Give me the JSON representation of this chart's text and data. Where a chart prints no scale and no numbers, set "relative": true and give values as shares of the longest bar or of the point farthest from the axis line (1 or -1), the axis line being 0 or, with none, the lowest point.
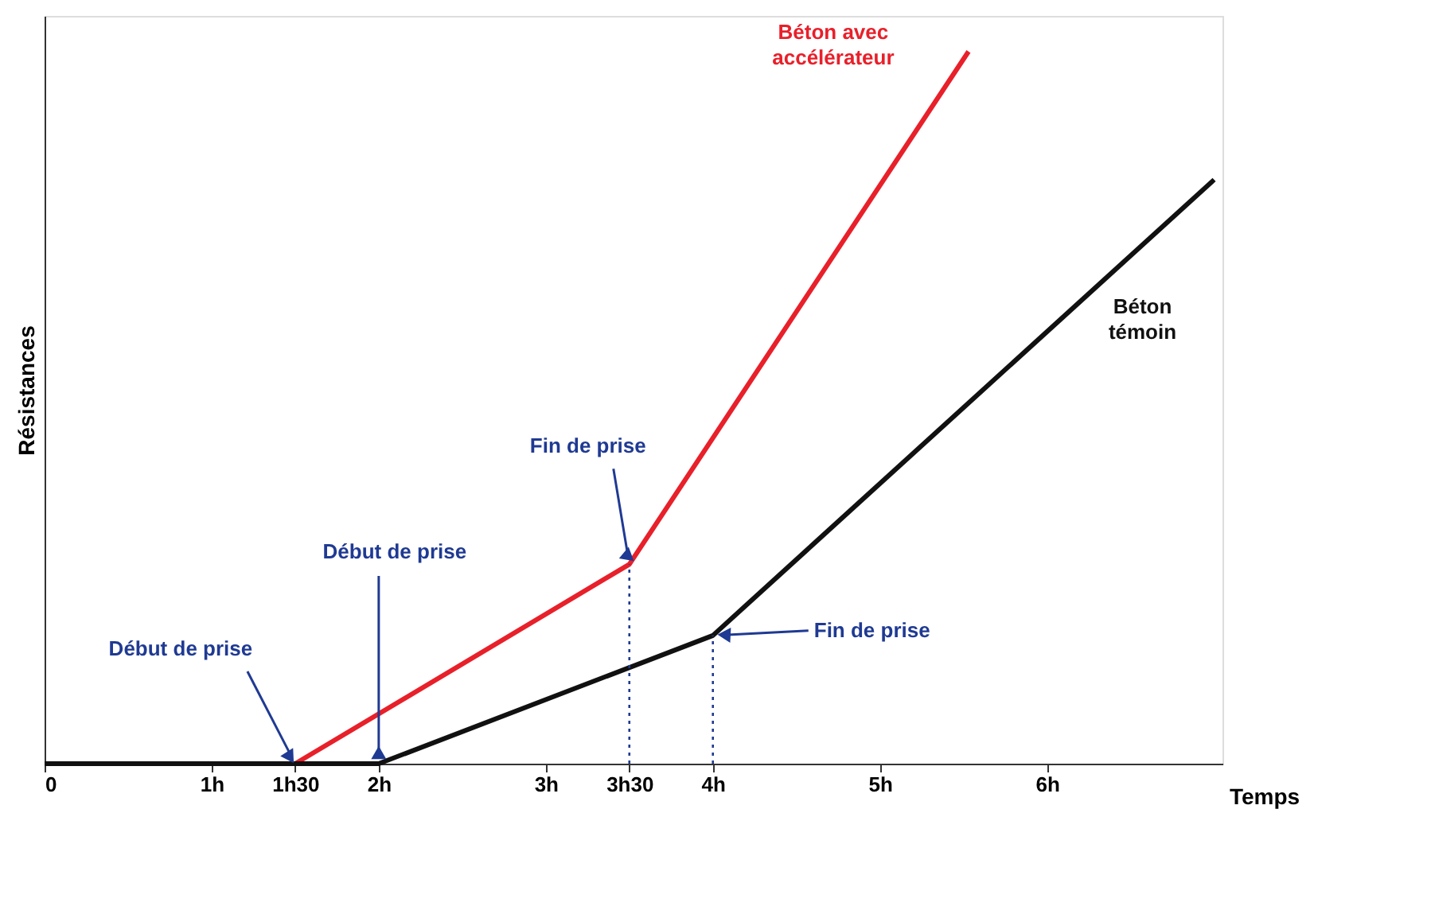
{
  "chart_data": {
    "type": "line",
    "xlabel": "Temps",
    "ylabel": "Résistances",
    "relative": true,
    "marker": "none",
    "line_style": "solid",
    "xlim": [
      0,
      7.05
    ],
    "xticks": [
      0,
      {
        "value": 1,
        "label": "1h"
      },
      {
        "value": 1.5,
        "label": "1h30"
      },
      {
        "value": 2,
        "label": "2h"
      },
      {
        "value": 3,
        "label": "3h"
      },
      {
        "value": 3.5,
        "label": "3h30"
      },
      {
        "value": 4,
        "label": "4h"
      },
      {
        "value": 5,
        "label": "5h"
      },
      {
        "value": 6,
        "label": "6h"
      }
    ],
    "series": [
      {
        "name": "Béton avec accélérateur",
        "color": "#e8202a",
        "x": [
          0,
          1.5,
          3.5,
          5.53
        ],
        "values": [
          0,
          0,
          0.28,
          1
        ]
      },
      {
        "name": "Béton témoin",
        "color": "#111111",
        "x": [
          0,
          2,
          4,
          7.0
        ],
        "values": [
          0,
          0,
          0.18,
          0.82
        ]
      }
    ],
    "ref_lines": [
      {
        "axis": "x",
        "value": 3.5,
        "color": "#1f3a93",
        "line_style": "dotted"
      },
      {
        "axis": "x",
        "value": 4,
        "color": "#1f3a93",
        "line_style": "dotted"
      }
    ],
    "annotations": [
      {
        "text": "Début de prise",
        "x": 1.5,
        "y": 0
      },
      {
        "text": "Début de prise",
        "x": 2,
        "y": 0
      },
      {
        "text": "Fin de prise",
        "x": 3.5,
        "y": 0.28
      },
      {
        "text": "Fin de prise",
        "x": 4,
        "y": 0.18
      }
    ]
  }
}
